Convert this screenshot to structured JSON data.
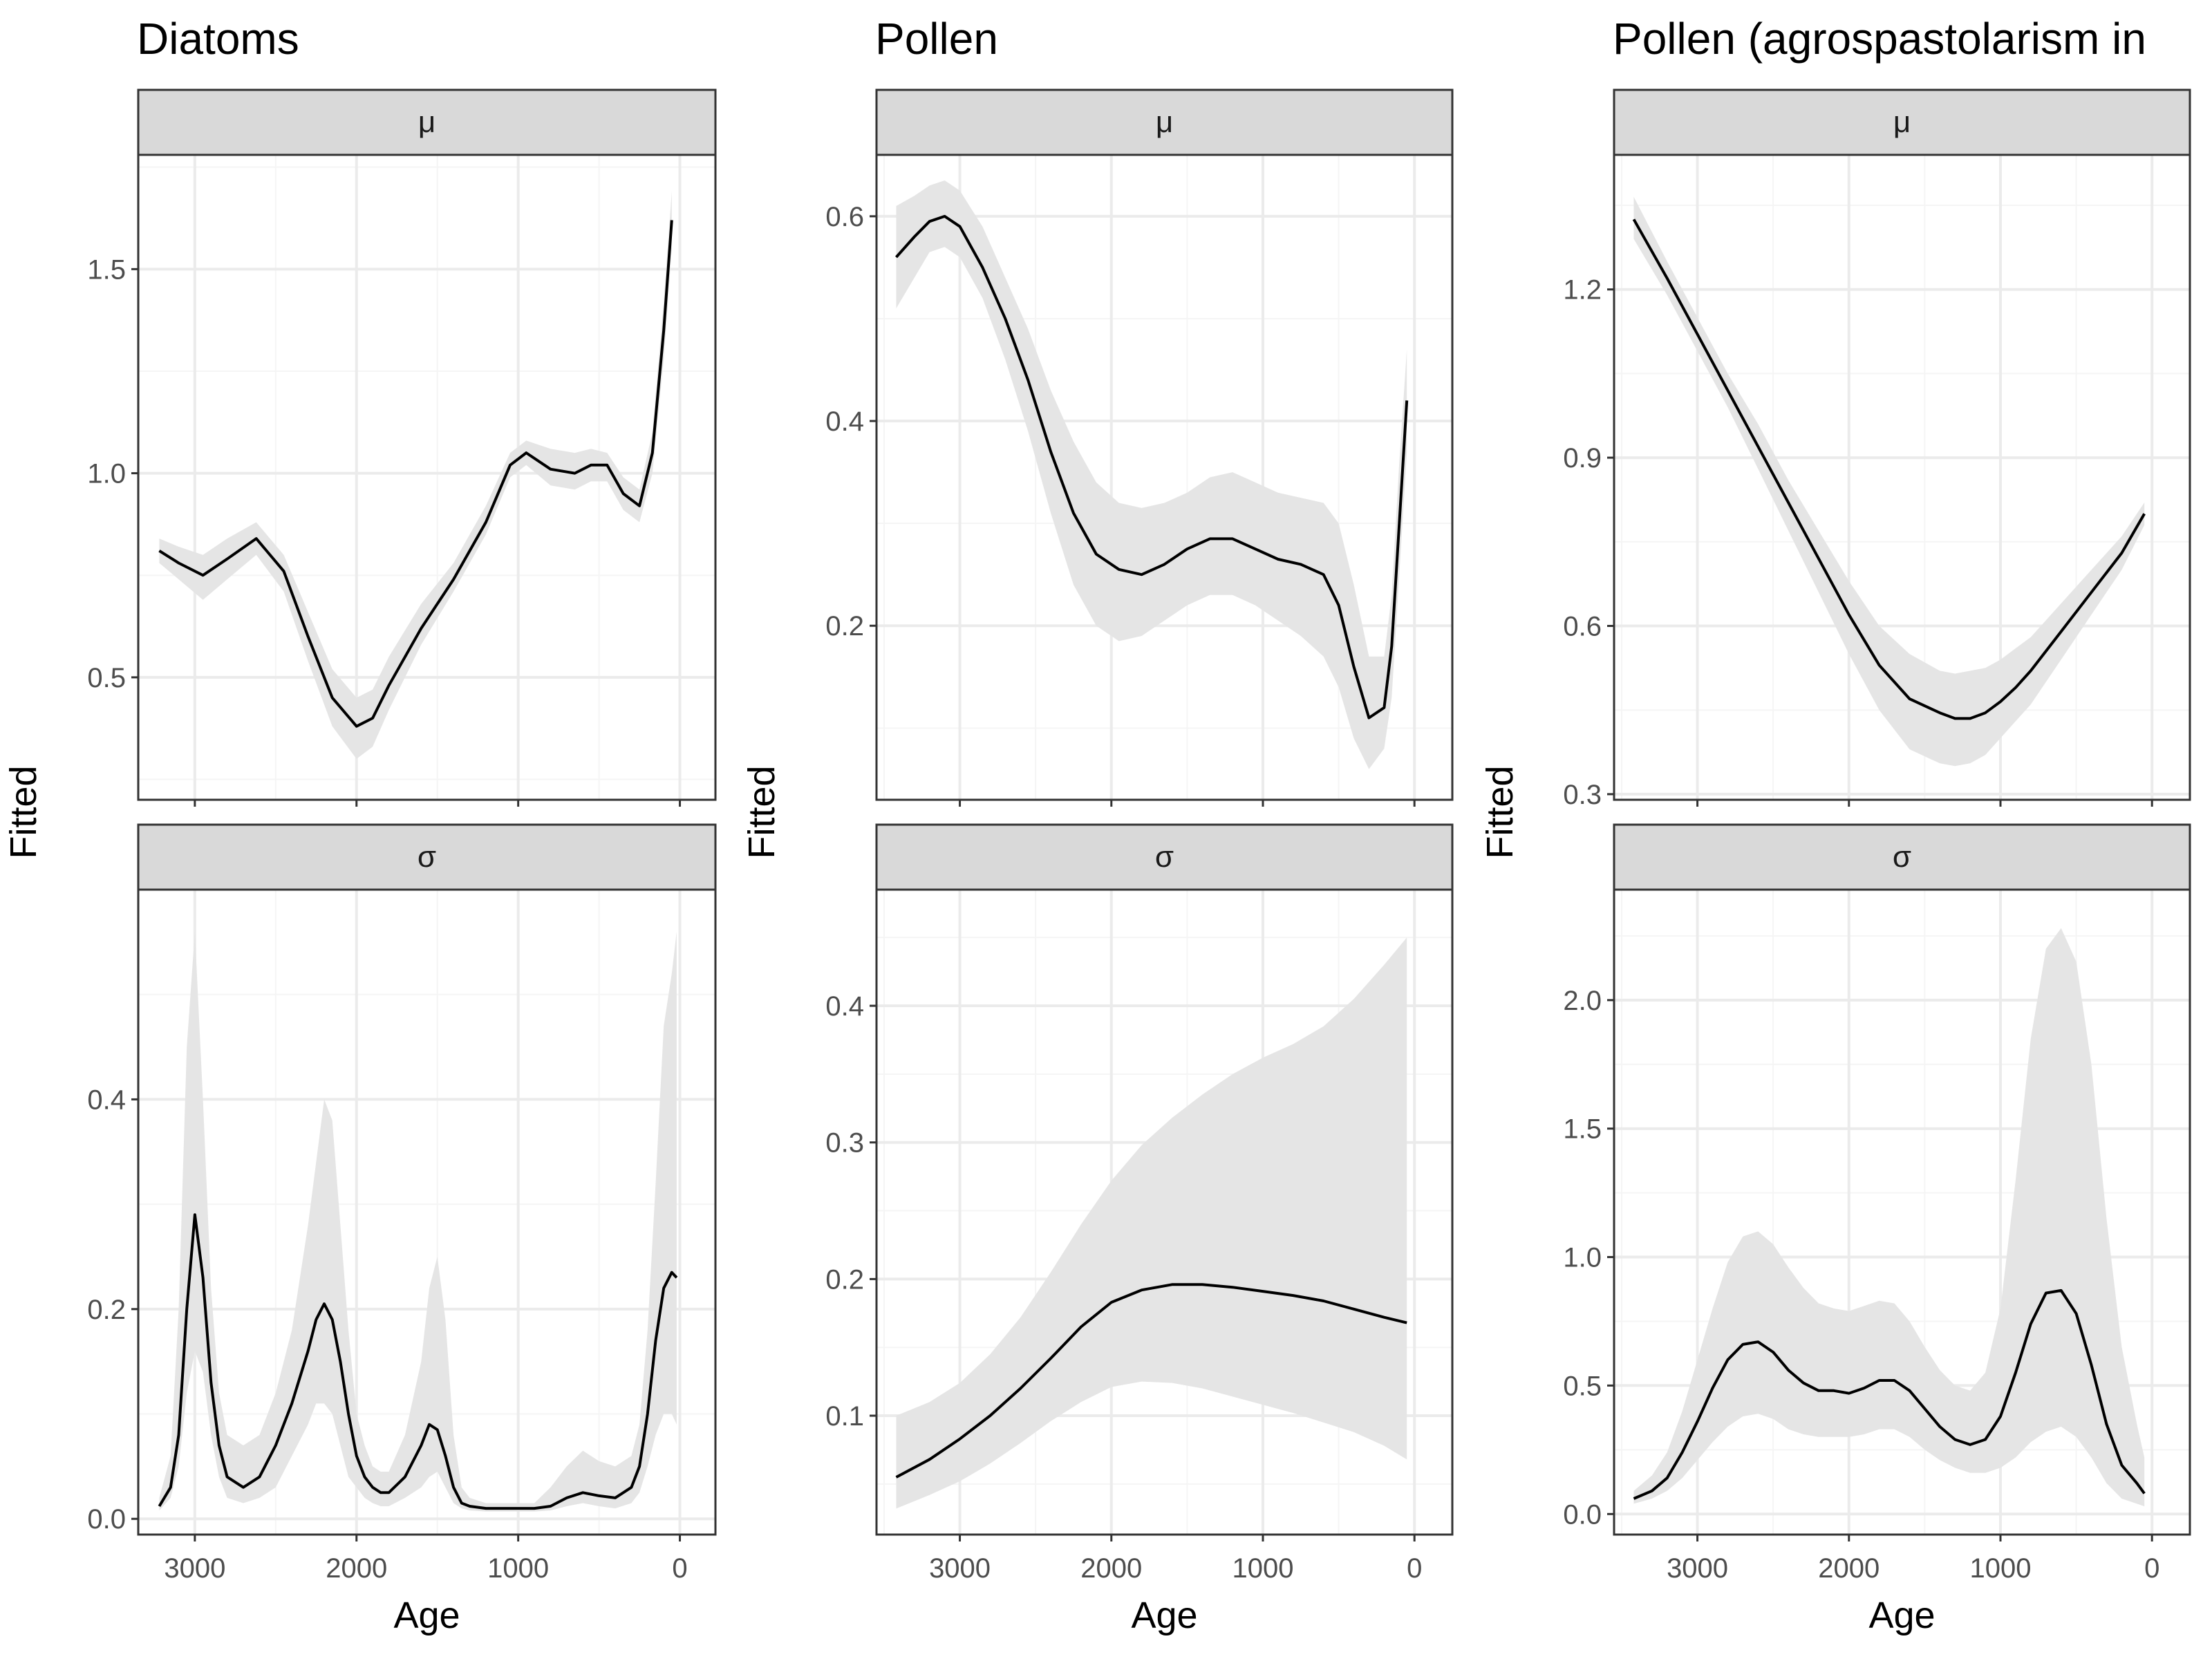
{
  "colors": {
    "panel_bg": "#ffffff",
    "grid_major": "#ebebeb",
    "grid_minor": "#f5f5f5",
    "strip_bg": "#d9d9d9",
    "band": "#e5e5e5",
    "line": "#000000",
    "border": "#333333"
  },
  "chart_data": [
    {
      "type": "line",
      "title": "Diatoms",
      "xlabel": "Age",
      "ylabel": "Fitted",
      "xlim": [
        3350,
        -220
      ],
      "x_ticks": [
        3000,
        2000,
        1000,
        0
      ],
      "x_tick_labels": [
        "3000",
        "2000",
        "1000",
        "0"
      ],
      "panels": [
        {
          "label": "μ",
          "ylim": [
            0.2,
            1.78
          ],
          "y_ticks": [
            0.5,
            1.0,
            1.5
          ],
          "y_tick_labels": [
            "0.5",
            "1.0",
            "1.5"
          ],
          "x": [
            3220,
            3100,
            2950,
            2800,
            2620,
            2450,
            2300,
            2150,
            2000,
            1900,
            1800,
            1600,
            1400,
            1200,
            1050,
            950,
            800,
            650,
            550,
            450,
            350,
            250,
            170,
            100,
            50
          ],
          "y": [
            0.81,
            0.78,
            0.75,
            0.79,
            0.84,
            0.76,
            0.6,
            0.45,
            0.38,
            0.4,
            0.48,
            0.62,
            0.74,
            0.88,
            1.02,
            1.05,
            1.01,
            1.0,
            1.02,
            1.02,
            0.95,
            0.92,
            1.05,
            1.35,
            1.62
          ],
          "lower": [
            0.78,
            0.74,
            0.69,
            0.74,
            0.8,
            0.71,
            0.54,
            0.38,
            0.3,
            0.33,
            0.42,
            0.58,
            0.71,
            0.85,
            0.99,
            1.02,
            0.97,
            0.96,
            0.98,
            0.98,
            0.91,
            0.88,
            1.0,
            1.28,
            1.55
          ],
          "upper": [
            0.84,
            0.82,
            0.8,
            0.84,
            0.88,
            0.8,
            0.66,
            0.52,
            0.45,
            0.47,
            0.55,
            0.68,
            0.78,
            0.92,
            1.05,
            1.08,
            1.06,
            1.05,
            1.06,
            1.05,
            0.99,
            0.96,
            1.1,
            1.42,
            1.69
          ]
        },
        {
          "label": "σ",
          "ylim": [
            -0.015,
            0.6
          ],
          "y_ticks": [
            0.0,
            0.2,
            0.4
          ],
          "y_tick_labels": [
            "0.0",
            "0.2",
            "0.4"
          ],
          "x": [
            3220,
            3150,
            3100,
            3050,
            3000,
            2950,
            2900,
            2850,
            2800,
            2700,
            2600,
            2500,
            2400,
            2300,
            2250,
            2200,
            2150,
            2100,
            2050,
            2000,
            1950,
            1900,
            1850,
            1800,
            1700,
            1600,
            1550,
            1500,
            1450,
            1400,
            1350,
            1300,
            1200,
            1100,
            1000,
            900,
            800,
            700,
            600,
            500,
            400,
            300,
            250,
            200,
            150,
            100,
            50,
            20
          ],
          "y": [
            0.012,
            0.03,
            0.08,
            0.2,
            0.29,
            0.23,
            0.13,
            0.07,
            0.04,
            0.03,
            0.04,
            0.07,
            0.11,
            0.16,
            0.19,
            0.205,
            0.19,
            0.15,
            0.1,
            0.06,
            0.04,
            0.03,
            0.025,
            0.025,
            0.04,
            0.07,
            0.09,
            0.085,
            0.06,
            0.03,
            0.015,
            0.012,
            0.01,
            0.01,
            0.01,
            0.01,
            0.012,
            0.02,
            0.025,
            0.022,
            0.02,
            0.03,
            0.05,
            0.1,
            0.17,
            0.22,
            0.235,
            0.23
          ],
          "lower": [
            0.008,
            0.02,
            0.05,
            0.12,
            0.16,
            0.14,
            0.08,
            0.04,
            0.02,
            0.015,
            0.02,
            0.03,
            0.06,
            0.09,
            0.11,
            0.11,
            0.1,
            0.07,
            0.04,
            0.03,
            0.02,
            0.015,
            0.012,
            0.012,
            0.02,
            0.03,
            0.04,
            0.045,
            0.03,
            0.015,
            0.01,
            0.008,
            0.007,
            0.007,
            0.007,
            0.007,
            0.008,
            0.012,
            0.015,
            0.012,
            0.01,
            0.015,
            0.025,
            0.05,
            0.08,
            0.1,
            0.1,
            0.09
          ],
          "upper": [
            0.02,
            0.06,
            0.2,
            0.45,
            0.56,
            0.4,
            0.22,
            0.12,
            0.08,
            0.07,
            0.08,
            0.12,
            0.18,
            0.28,
            0.34,
            0.4,
            0.38,
            0.28,
            0.18,
            0.1,
            0.07,
            0.05,
            0.045,
            0.045,
            0.08,
            0.15,
            0.22,
            0.25,
            0.19,
            0.08,
            0.03,
            0.02,
            0.015,
            0.015,
            0.015,
            0.015,
            0.03,
            0.05,
            0.065,
            0.055,
            0.05,
            0.06,
            0.09,
            0.18,
            0.32,
            0.47,
            0.52,
            0.56
          ]
        }
      ]
    },
    {
      "type": "line",
      "title": "Pollen",
      "xlabel": "Age",
      "ylabel": "Fitted",
      "xlim": [
        3550,
        -250
      ],
      "x_ticks": [
        3000,
        2000,
        1000,
        0
      ],
      "x_tick_labels": [
        "3000",
        "2000",
        "1000",
        "0"
      ],
      "panels": [
        {
          "label": "μ",
          "ylim": [
            0.03,
            0.66
          ],
          "y_ticks": [
            0.2,
            0.4,
            0.6
          ],
          "y_tick_labels": [
            "0.2",
            "0.4",
            "0.6"
          ],
          "x": [
            3420,
            3300,
            3200,
            3100,
            3000,
            2850,
            2700,
            2550,
            2400,
            2250,
            2100,
            1950,
            1800,
            1650,
            1500,
            1350,
            1200,
            1050,
            900,
            750,
            600,
            500,
            400,
            300,
            200,
            150,
            100,
            50
          ],
          "y": [
            0.56,
            0.58,
            0.595,
            0.6,
            0.59,
            0.55,
            0.5,
            0.44,
            0.37,
            0.31,
            0.27,
            0.255,
            0.25,
            0.26,
            0.275,
            0.285,
            0.285,
            0.275,
            0.265,
            0.26,
            0.25,
            0.22,
            0.16,
            0.11,
            0.12,
            0.18,
            0.3,
            0.42
          ],
          "lower": [
            0.51,
            0.54,
            0.565,
            0.57,
            0.56,
            0.52,
            0.46,
            0.39,
            0.31,
            0.24,
            0.2,
            0.185,
            0.19,
            0.205,
            0.22,
            0.23,
            0.23,
            0.22,
            0.205,
            0.19,
            0.17,
            0.14,
            0.09,
            0.06,
            0.08,
            0.13,
            0.25,
            0.37
          ],
          "upper": [
            0.61,
            0.62,
            0.63,
            0.635,
            0.625,
            0.59,
            0.54,
            0.49,
            0.43,
            0.38,
            0.34,
            0.32,
            0.315,
            0.32,
            0.33,
            0.345,
            0.35,
            0.34,
            0.33,
            0.325,
            0.32,
            0.3,
            0.24,
            0.17,
            0.17,
            0.23,
            0.36,
            0.47
          ]
        },
        {
          "label": "σ",
          "ylim": [
            0.013,
            0.485
          ],
          "y_ticks": [
            0.1,
            0.2,
            0.3,
            0.4
          ],
          "y_tick_labels": [
            "0.1",
            "0.2",
            "0.3",
            "0.4"
          ],
          "x": [
            3420,
            3200,
            3000,
            2800,
            2600,
            2400,
            2200,
            2000,
            1800,
            1600,
            1400,
            1200,
            1000,
            800,
            600,
            400,
            200,
            50
          ],
          "y": [
            0.055,
            0.068,
            0.083,
            0.1,
            0.12,
            0.142,
            0.165,
            0.183,
            0.192,
            0.196,
            0.196,
            0.194,
            0.191,
            0.188,
            0.184,
            0.178,
            0.172,
            0.168
          ],
          "lower": [
            0.032,
            0.042,
            0.052,
            0.065,
            0.08,
            0.096,
            0.11,
            0.121,
            0.125,
            0.124,
            0.12,
            0.114,
            0.108,
            0.102,
            0.095,
            0.088,
            0.078,
            0.068
          ],
          "upper": [
            0.1,
            0.11,
            0.124,
            0.145,
            0.172,
            0.205,
            0.24,
            0.272,
            0.298,
            0.318,
            0.335,
            0.35,
            0.362,
            0.372,
            0.385,
            0.405,
            0.43,
            0.45
          ]
        }
      ]
    },
    {
      "type": "line",
      "title": "Pollen (agrospastolarism in",
      "xlabel": "Age",
      "ylabel": "Fitted",
      "xlim": [
        3550,
        -250
      ],
      "x_ticks": [
        3000,
        2000,
        1000,
        0
      ],
      "x_tick_labels": [
        "3000",
        "2000",
        "1000",
        "0"
      ],
      "panels": [
        {
          "label": "μ",
          "ylim": [
            0.29,
            1.44
          ],
          "y_ticks": [
            0.3,
            0.6,
            0.9,
            1.2
          ],
          "y_tick_labels": [
            "0.3",
            "0.6",
            "0.9",
            "1.2"
          ],
          "x": [
            3420,
            3200,
            3000,
            2800,
            2600,
            2400,
            2200,
            2000,
            1800,
            1600,
            1400,
            1300,
            1200,
            1100,
            1000,
            900,
            800,
            600,
            400,
            200,
            50
          ],
          "y": [
            1.325,
            1.22,
            1.12,
            1.02,
            0.92,
            0.82,
            0.72,
            0.62,
            0.53,
            0.47,
            0.445,
            0.435,
            0.435,
            0.445,
            0.465,
            0.49,
            0.52,
            0.59,
            0.66,
            0.73,
            0.8
          ],
          "lower": [
            1.29,
            1.19,
            1.09,
            0.99,
            0.88,
            0.77,
            0.66,
            0.55,
            0.45,
            0.38,
            0.355,
            0.35,
            0.355,
            0.37,
            0.4,
            0.43,
            0.46,
            0.54,
            0.62,
            0.7,
            0.78
          ],
          "upper": [
            1.365,
            1.25,
            1.15,
            1.05,
            0.96,
            0.86,
            0.77,
            0.68,
            0.6,
            0.55,
            0.52,
            0.515,
            0.52,
            0.525,
            0.54,
            0.56,
            0.58,
            0.64,
            0.7,
            0.76,
            0.82
          ]
        },
        {
          "label": "σ",
          "ylim": [
            -0.08,
            2.43
          ],
          "y_ticks": [
            0.0,
            0.5,
            1.0,
            1.5,
            2.0
          ],
          "y_tick_labels": [
            "0.0",
            "0.5",
            "1.0",
            "1.5",
            "2.0"
          ],
          "x": [
            3420,
            3300,
            3200,
            3100,
            3000,
            2900,
            2800,
            2700,
            2600,
            2500,
            2400,
            2300,
            2200,
            2100,
            2000,
            1900,
            1800,
            1700,
            1600,
            1500,
            1400,
            1300,
            1200,
            1100,
            1000,
            900,
            800,
            700,
            600,
            500,
            400,
            300,
            200,
            100,
            50
          ],
          "y": [
            0.06,
            0.09,
            0.14,
            0.24,
            0.36,
            0.49,
            0.6,
            0.66,
            0.67,
            0.63,
            0.56,
            0.51,
            0.48,
            0.48,
            0.47,
            0.49,
            0.52,
            0.52,
            0.48,
            0.41,
            0.34,
            0.29,
            0.27,
            0.29,
            0.38,
            0.55,
            0.74,
            0.86,
            0.87,
            0.78,
            0.58,
            0.35,
            0.19,
            0.12,
            0.08
          ],
          "lower": [
            0.04,
            0.06,
            0.09,
            0.14,
            0.21,
            0.28,
            0.34,
            0.38,
            0.39,
            0.37,
            0.33,
            0.31,
            0.3,
            0.3,
            0.3,
            0.31,
            0.33,
            0.33,
            0.3,
            0.25,
            0.21,
            0.18,
            0.16,
            0.16,
            0.18,
            0.22,
            0.28,
            0.32,
            0.34,
            0.3,
            0.22,
            0.12,
            0.06,
            0.04,
            0.03
          ],
          "upper": [
            0.09,
            0.15,
            0.24,
            0.4,
            0.6,
            0.8,
            0.98,
            1.08,
            1.1,
            1.05,
            0.96,
            0.88,
            0.82,
            0.8,
            0.79,
            0.81,
            0.83,
            0.82,
            0.75,
            0.65,
            0.56,
            0.5,
            0.48,
            0.55,
            0.8,
            1.3,
            1.85,
            2.2,
            2.28,
            2.15,
            1.75,
            1.15,
            0.65,
            0.35,
            0.22
          ]
        }
      ]
    }
  ]
}
